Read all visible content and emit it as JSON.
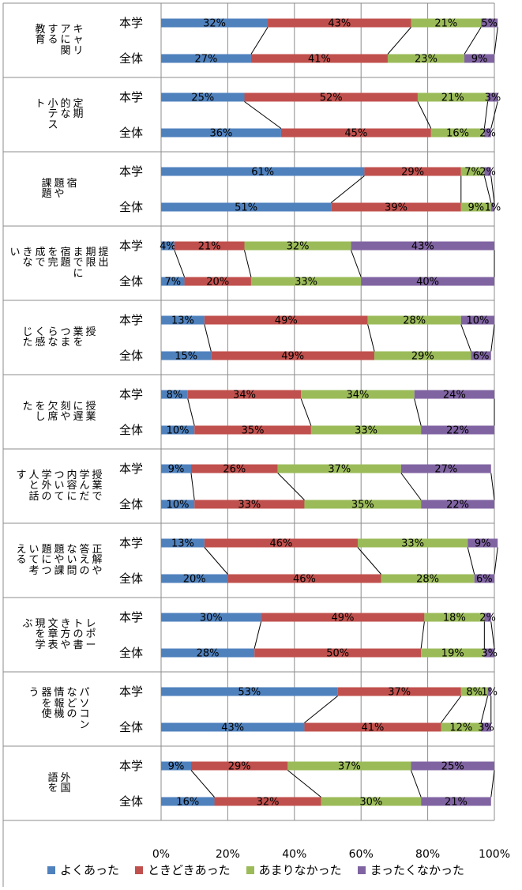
{
  "chart_data": {
    "type": "bar",
    "orientation": "horizontal",
    "stacked": true,
    "percent": true,
    "xlim": [
      0,
      100
    ],
    "x_ticks": [
      "0%",
      "20%",
      "40%",
      "60%",
      "80%",
      "100%"
    ],
    "grid": true,
    "legend_position": "bottom",
    "series": [
      {
        "name": "よくあった",
        "color": "#4F81BD"
      },
      {
        "name": "ときどきあった",
        "color": "#C0504D"
      },
      {
        "name": "あまりなかった",
        "color": "#9BBB59"
      },
      {
        "name": "まったくなかった",
        "color": "#8064A2"
      }
    ],
    "groups": [
      {
        "label_columns": [
          "キャリ",
          "アに関",
          "する",
          "教育"
        ],
        "rows": [
          {
            "label": "本学",
            "values": [
              32,
              43,
              21,
              5
            ]
          },
          {
            "label": "全体",
            "values": [
              27,
              41,
              23,
              9
            ]
          }
        ]
      },
      {
        "label_columns": [
          "定期",
          "的な",
          "小テス",
          "ト"
        ],
        "rows": [
          {
            "label": "本学",
            "values": [
              25,
              52,
              21,
              3
            ]
          },
          {
            "label": "全体",
            "values": [
              36,
              45,
              16,
              2
            ]
          }
        ]
      },
      {
        "label_columns": [
          "宿",
          "題や",
          "課題"
        ],
        "rows": [
          {
            "label": "本学",
            "values": [
              61,
              29,
              7,
              2
            ]
          },
          {
            "label": "全体",
            "values": [
              51,
              39,
              9,
              1
            ]
          }
        ]
      },
      {
        "label_columns": [
          "提出",
          "期限",
          "までに",
          "宿題",
          "を完",
          "成で",
          "きな",
          "い"
        ],
        "rows": [
          {
            "label": "本学",
            "values": [
              4,
              21,
              32,
              43
            ]
          },
          {
            "label": "全体",
            "values": [
              7,
              20,
              33,
              40
            ]
          }
        ]
      },
      {
        "label_columns": [
          "授",
          "業を",
          "つま",
          "らな",
          "く感",
          "じた"
        ],
        "rows": [
          {
            "label": "本学",
            "values": [
              13,
              49,
              28,
              10
            ]
          },
          {
            "label": "全体",
            "values": [
              15,
              49,
              29,
              6
            ]
          }
        ]
      },
      {
        "label_columns": [
          "授業",
          "に遅",
          "刻や",
          "欠席",
          "をし",
          "た"
        ],
        "rows": [
          {
            "label": "本学",
            "values": [
              8,
              34,
              34,
              24
            ]
          },
          {
            "label": "全体",
            "values": [
              10,
              35,
              33,
              22
            ]
          }
        ]
      },
      {
        "label_columns": [
          "授業で",
          "学んだ",
          "内容に",
          "ついて",
          "学外の",
          "人と話",
          "す"
        ],
        "rows": [
          {
            "label": "本学",
            "values": [
              9,
              26,
              37,
              27
            ]
          },
          {
            "label": "全体",
            "values": [
              10,
              33,
              35,
              22
            ]
          }
        ]
      },
      {
        "label_columns": [
          "正解や",
          "答えの",
          "ない問",
          "題や課",
          "題につ",
          "いて考",
          "える"
        ],
        "rows": [
          {
            "label": "本学",
            "values": [
              13,
              46,
              33,
              9
            ]
          },
          {
            "label": "全体",
            "values": [
              20,
              46,
              28,
              6
            ]
          }
        ]
      },
      {
        "label_columns": [
          "レポー",
          "トの書",
          "き方や",
          "文章表",
          "現を学",
          "ぶ"
        ],
        "rows": [
          {
            "label": "本学",
            "values": [
              30,
              49,
              18,
              2
            ]
          },
          {
            "label": "全体",
            "values": [
              28,
              50,
              19,
              3
            ]
          }
        ]
      },
      {
        "label_columns": [
          "パソコン",
          "などの",
          "情報機",
          "器を使",
          "う"
        ],
        "rows": [
          {
            "label": "本学",
            "values": [
              53,
              37,
              8,
              1
            ]
          },
          {
            "label": "全体",
            "values": [
              43,
              41,
              12,
              3
            ]
          }
        ]
      },
      {
        "label_columns": [
          "外国",
          "語を"
        ],
        "rows": [
          {
            "label": "本学",
            "values": [
              9,
              29,
              37,
              25
            ]
          },
          {
            "label": "全体",
            "values": [
              16,
              32,
              30,
              21
            ]
          }
        ]
      }
    ]
  }
}
